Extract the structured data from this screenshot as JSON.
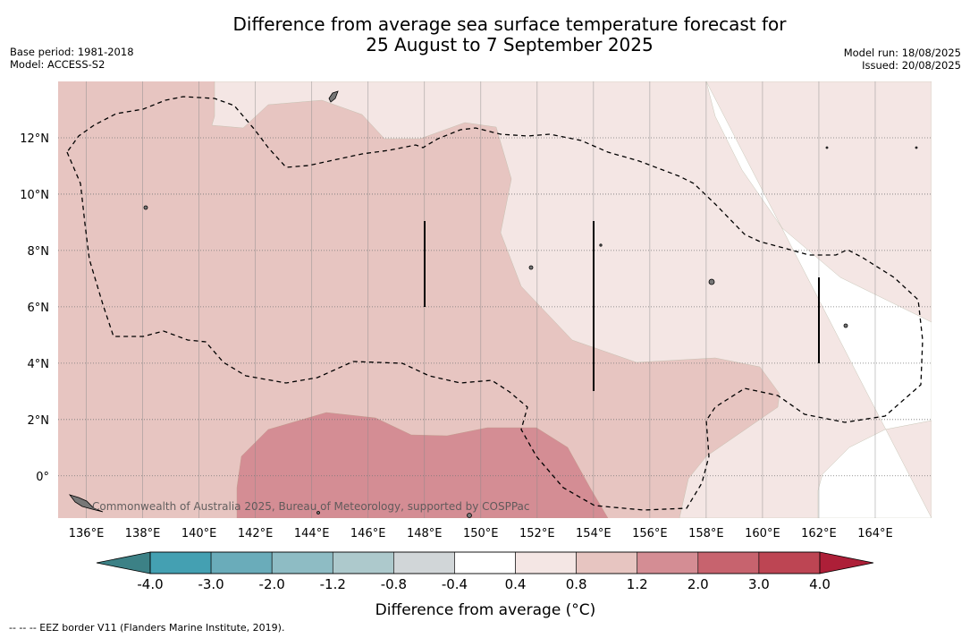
{
  "title_line1": "Difference from average sea surface temperature forecast for",
  "title_line2": "25 August to 7 September 2025",
  "base_period": "Base period: 1981-2018",
  "model": "Model: ACCESS-S2",
  "model_run": "Model run: 18/08/2025",
  "issued": "Issued: 20/08/2025",
  "copyright": "Commonwealth of Australia 2025, Bureau of Meteorology, supported by COSPPac",
  "footnote": "-- -- -- EEZ border V11 (Flanders Marine Institute, 2019).",
  "map_data": {
    "lon_range": [
      135,
      166
    ],
    "lat_range": [
      -1.5,
      14
    ],
    "lon_ticks": [
      "136°E",
      "138°E",
      "140°E",
      "142°E",
      "144°E",
      "146°E",
      "148°E",
      "150°E",
      "152°E",
      "154°E",
      "156°E",
      "158°E",
      "160°E",
      "162°E",
      "164°E"
    ],
    "lat_ticks": [
      "12°N",
      "10°N",
      "8°N",
      "6°N",
      "4°N",
      "2°N",
      "0°"
    ],
    "meridians": [
      136,
      138,
      140,
      142,
      144,
      146,
      148,
      150,
      152,
      154,
      156,
      158,
      160,
      162,
      164
    ],
    "parallels": [
      12,
      10,
      8,
      6,
      4,
      2,
      0
    ]
  },
  "colorbar": {
    "label": "Difference from average (°C)",
    "tick_labels": [
      "-4.0",
      "-3.0",
      "-2.0",
      "-1.2",
      "-0.8",
      "-0.4",
      "0.4",
      "0.8",
      "1.2",
      "2.0",
      "3.0",
      "4.0"
    ],
    "colors": [
      "#44a0b2",
      "#6aacba",
      "#8ebcc4",
      "#adc9cc",
      "#d1d6d8",
      "#ffffff",
      "#f4e6e4",
      "#e7c5c1",
      "#d48d94",
      "#c7636e",
      "#bd4553"
    ],
    "under_color": "#3c8186",
    "over_color": "#ad1f38"
  }
}
